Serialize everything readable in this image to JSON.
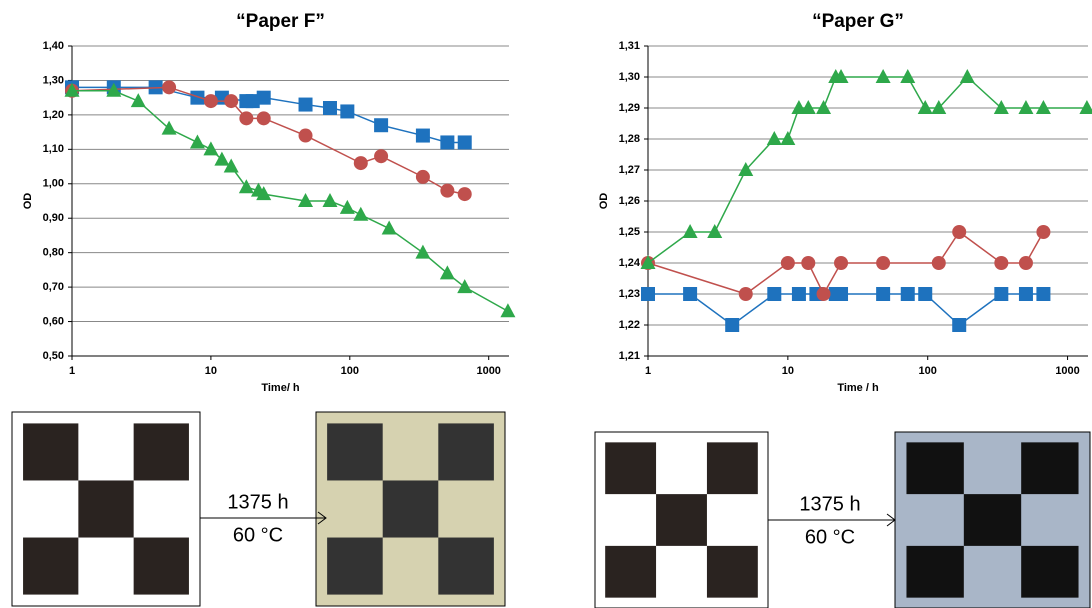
{
  "chart_data": [
    {
      "type": "line",
      "title": "“Paper F”",
      "xlabel": "Time/ h",
      "ylabel": "OD",
      "xscale": "log",
      "xlim": [
        1,
        1400
      ],
      "xticks": [
        1,
        10,
        100,
        1000
      ],
      "ylim": [
        0.5,
        1.4
      ],
      "yticks": [
        {
          "value": 0.5,
          "label": "0,50"
        },
        {
          "value": 0.6,
          "label": "0,60"
        },
        {
          "value": 0.7,
          "label": "0,70"
        },
        {
          "value": 0.8,
          "label": "0,80"
        },
        {
          "value": 0.9,
          "label": "0,90"
        },
        {
          "value": 1.0,
          "label": "1,00"
        },
        {
          "value": 1.1,
          "label": "1,10"
        },
        {
          "value": 1.2,
          "label": "1,20"
        },
        {
          "value": 1.3,
          "label": "1,30"
        },
        {
          "value": 1.4,
          "label": "1,40"
        }
      ],
      "grid": true,
      "series": [
        {
          "color": "#1e72be",
          "marker": "square",
          "x": [
            1,
            2,
            4,
            8,
            12,
            18,
            20,
            24,
            48,
            72,
            96,
            168,
            336,
            504,
            672
          ],
          "values": [
            1.28,
            1.28,
            1.28,
            1.25,
            1.25,
            1.24,
            1.24,
            1.25,
            1.23,
            1.22,
            1.21,
            1.17,
            1.14,
            1.12,
            1.12
          ]
        },
        {
          "color": "#c0504d",
          "marker": "circle",
          "x": [
            1,
            5,
            10,
            14,
            18,
            24,
            48,
            120,
            168,
            336,
            504,
            672
          ],
          "values": [
            1.27,
            1.28,
            1.24,
            1.24,
            1.19,
            1.19,
            1.14,
            1.06,
            1.08,
            1.02,
            0.98,
            0.97
          ]
        },
        {
          "color": "#2ea84a",
          "marker": "triangle",
          "x": [
            1,
            2,
            3,
            5,
            8,
            10,
            12,
            14,
            18,
            22,
            24,
            48,
            72,
            96,
            120,
            192,
            336,
            504,
            672,
            1375
          ],
          "values": [
            1.27,
            1.27,
            1.24,
            1.16,
            1.12,
            1.1,
            1.07,
            1.05,
            0.99,
            0.98,
            0.97,
            0.95,
            0.95,
            0.93,
            0.91,
            0.87,
            0.8,
            0.74,
            0.7,
            0.63
          ]
        }
      ],
      "annotation": {
        "time": "1375 h",
        "temperature": "60 °C"
      }
    },
    {
      "type": "line",
      "title": "“Paper G”",
      "xlabel": "Time / h",
      "ylabel": "OD",
      "xscale": "log",
      "xlim": [
        1,
        1400
      ],
      "xticks": [
        1,
        10,
        100,
        1000
      ],
      "ylim": [
        1.21,
        1.31
      ],
      "yticks": [
        {
          "value": 1.21,
          "label": "1,21"
        },
        {
          "value": 1.22,
          "label": "1,22"
        },
        {
          "value": 1.23,
          "label": "1,23"
        },
        {
          "value": 1.24,
          "label": "1,24"
        },
        {
          "value": 1.25,
          "label": "1,25"
        },
        {
          "value": 1.26,
          "label": "1,26"
        },
        {
          "value": 1.27,
          "label": "1,27"
        },
        {
          "value": 1.28,
          "label": "1,28"
        },
        {
          "value": 1.29,
          "label": "1,29"
        },
        {
          "value": 1.3,
          "label": "1,30"
        },
        {
          "value": 1.31,
          "label": "1,31"
        }
      ],
      "grid": true,
      "series": [
        {
          "color": "#1e72be",
          "marker": "square",
          "x": [
            1,
            2,
            4,
            8,
            12,
            16,
            22,
            24,
            48,
            72,
            96,
            168,
            336,
            504,
            672
          ],
          "values": [
            1.23,
            1.23,
            1.22,
            1.23,
            1.23,
            1.23,
            1.23,
            1.23,
            1.23,
            1.23,
            1.23,
            1.22,
            1.23,
            1.23,
            1.23
          ]
        },
        {
          "color": "#c0504d",
          "marker": "circle",
          "x": [
            1,
            5,
            10,
            14,
            18,
            24,
            48,
            120,
            168,
            336,
            504,
            672
          ],
          "values": [
            1.24,
            1.23,
            1.24,
            1.24,
            1.23,
            1.24,
            1.24,
            1.24,
            1.25,
            1.24,
            1.24,
            1.25
          ]
        },
        {
          "color": "#2ea84a",
          "marker": "triangle",
          "x": [
            1,
            2,
            3,
            5,
            8,
            10,
            12,
            14,
            18,
            22,
            24,
            48,
            72,
            96,
            120,
            192,
            336,
            504,
            672,
            1375
          ],
          "values": [
            1.24,
            1.25,
            1.25,
            1.27,
            1.28,
            1.28,
            1.29,
            1.29,
            1.29,
            1.3,
            1.3,
            1.3,
            1.3,
            1.29,
            1.29,
            1.3,
            1.29,
            1.29,
            1.29,
            1.29
          ]
        }
      ],
      "annotation": {
        "time": "1375 h",
        "temperature": "60 °C"
      }
    }
  ]
}
